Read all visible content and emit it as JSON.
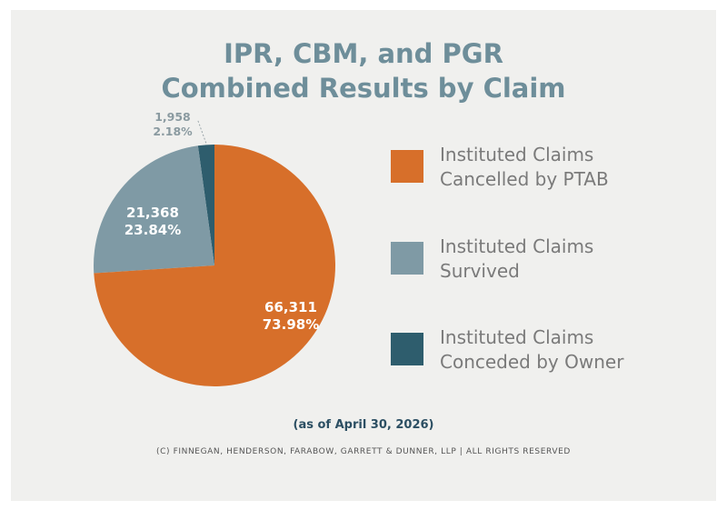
{
  "chart_data": {
    "type": "pie",
    "title": "IPR, CBM, and PGR Combined Results by Claim",
    "title_lines": [
      "IPR, CBM, and PGR",
      "Combined Results by Claim"
    ],
    "categories": [
      "Instituted Claims Cancelled by PTAB",
      "Instituted Claims Survived",
      "Instituted Claims Conceded by Owner"
    ],
    "values": [
      66311,
      21368,
      1958
    ],
    "value_labels": [
      "66,311",
      "21,368",
      "1,958"
    ],
    "percent_labels": [
      "73.98%",
      "23.84%",
      "2.18%"
    ],
    "percents": [
      73.98,
      23.84,
      2.18
    ],
    "colors": [
      "#d76f2a",
      "#7f9aa5",
      "#2e5d6d"
    ],
    "legend": {
      "placement": "right",
      "items": [
        {
          "line1": "Instituted Claims",
          "line2": "Cancelled by PTAB"
        },
        {
          "line1": "Instituted Claims",
          "line2": "Survived"
        },
        {
          "line1": "Instituted Claims",
          "line2": "Conceded by Owner"
        }
      ]
    }
  },
  "footer": {
    "as_of": "(as of April 30, 2026)",
    "copyright": "(C) FINNEGAN, HENDERSON, FARABOW, GARRETT & DUNNER, LLP | ALL RIGHTS RESERVED"
  }
}
